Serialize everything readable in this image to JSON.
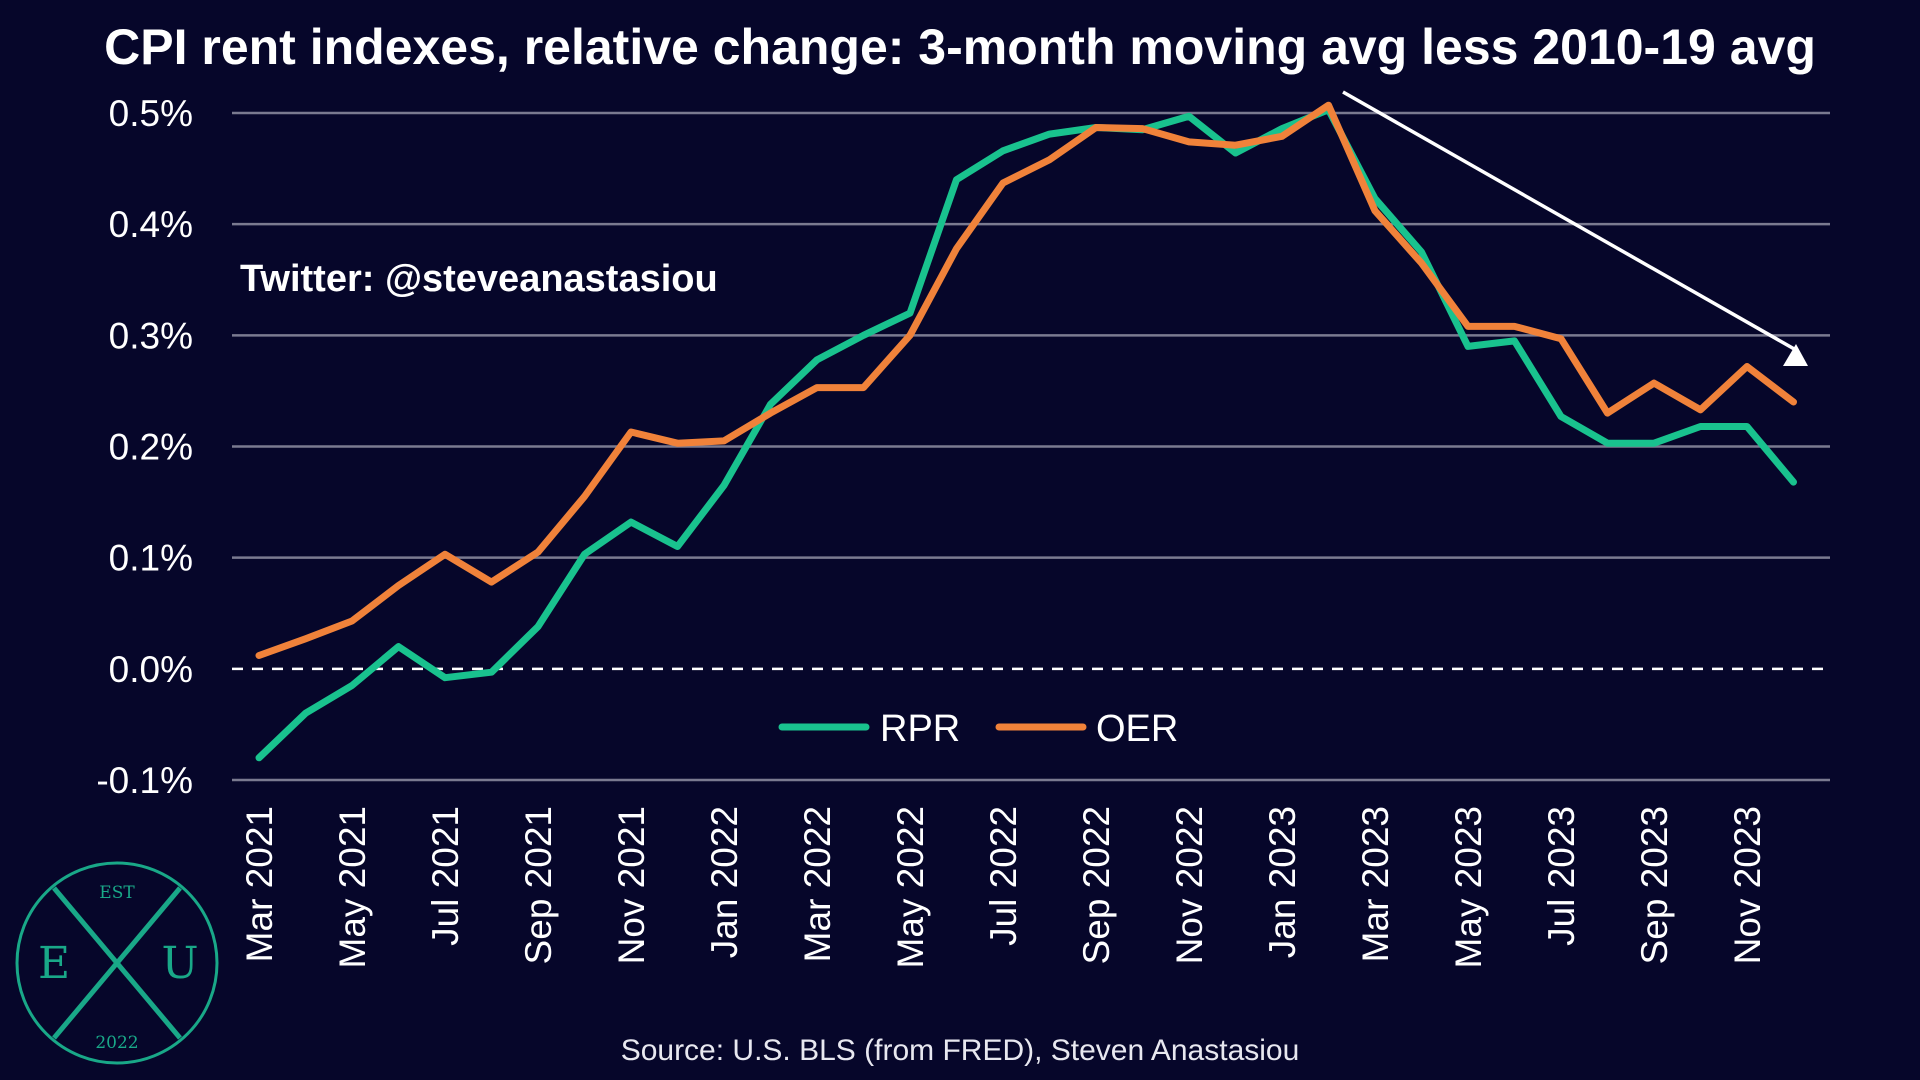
{
  "title": "CPI rent indexes, relative change: 3-month moving avg less 2010-19 avg",
  "handle": "Twitter: @steveanastasiou",
  "source": "Source: U.S. BLS (from FRED), Steven Anastasiou",
  "logo": {
    "top": "EST",
    "left": "E",
    "center": "X",
    "right": "U",
    "bottom": "2022"
  },
  "colors": {
    "background": "#06062a",
    "grid": "#7a7a90",
    "zero_line": "#ffffff",
    "rpr": "#19c28e",
    "oer": "#f0823a",
    "arrow": "#ffffff",
    "logo": "#19a888"
  },
  "chart_data": {
    "type": "line",
    "ylim": [
      -0.1,
      0.5
    ],
    "y_ticks": [
      -0.1,
      0.0,
      0.1,
      0.2,
      0.3,
      0.4,
      0.5
    ],
    "y_tick_labels": [
      "-0.1%",
      "0.0%",
      "0.1%",
      "0.2%",
      "0.3%",
      "0.4%",
      "0.5%"
    ],
    "grid": true,
    "legend_placement": "bottom-center",
    "x": [
      "Mar 2021",
      "Apr 2021",
      "May 2021",
      "Jun 2021",
      "Jul 2021",
      "Aug 2021",
      "Sep 2021",
      "Oct 2021",
      "Nov 2021",
      "Dec 2021",
      "Jan 2022",
      "Feb 2022",
      "Mar 2022",
      "Apr 2022",
      "May 2022",
      "Jun 2022",
      "Jul 2022",
      "Aug 2022",
      "Sep 2022",
      "Oct 2022",
      "Nov 2022",
      "Dec 2022",
      "Jan 2023",
      "Feb 2023",
      "Mar 2023",
      "Apr 2023",
      "May 2023",
      "Jun 2023",
      "Jul 2023",
      "Aug 2023",
      "Sep 2023",
      "Oct 2023",
      "Nov 2023",
      "Dec 2023"
    ],
    "x_tick_labels": [
      "Mar 2021",
      "May 2021",
      "Jul 2021",
      "Sep 2021",
      "Nov 2021",
      "Jan 2022",
      "Mar 2022",
      "May 2022",
      "Jul 2022",
      "Sep 2022",
      "Nov 2022",
      "Jan 2023",
      "Mar 2023",
      "May 2023",
      "Jul 2023",
      "Sep 2023",
      "Nov 2023"
    ],
    "series": [
      {
        "name": "RPR",
        "values": [
          -0.08,
          -0.04,
          -0.015,
          0.02,
          -0.008,
          -0.003,
          0.038,
          0.103,
          0.132,
          0.11,
          0.165,
          0.238,
          0.278,
          0.3,
          0.32,
          0.44,
          0.466,
          0.481,
          0.487,
          0.485,
          0.497,
          0.464,
          0.486,
          0.503,
          0.423,
          0.375,
          0.29,
          0.295,
          0.227,
          0.203,
          0.203,
          0.218,
          0.218,
          0.168
        ]
      },
      {
        "name": "OER",
        "values": [
          0.012,
          0.027,
          0.043,
          0.075,
          0.103,
          0.078,
          0.105,
          0.155,
          0.213,
          0.203,
          0.205,
          0.23,
          0.253,
          0.253,
          0.3,
          0.378,
          0.437,
          0.458,
          0.487,
          0.486,
          0.474,
          0.471,
          0.479,
          0.507,
          0.412,
          0.365,
          0.308,
          0.308,
          0.297,
          0.23,
          0.257,
          0.233,
          0.272,
          0.24
        ]
      }
    ]
  }
}
